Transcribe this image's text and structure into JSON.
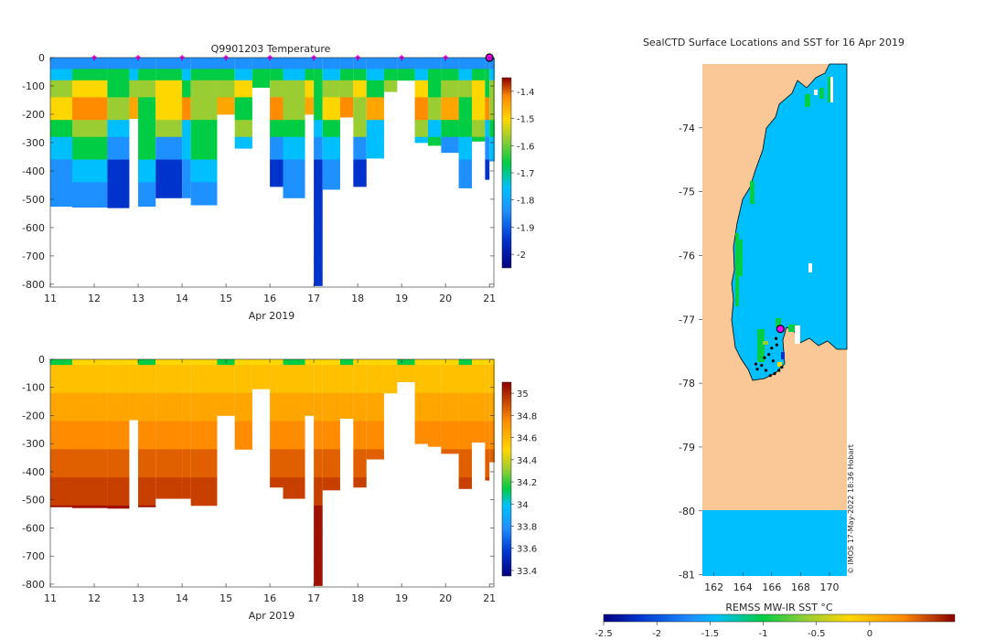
{
  "chart_data": [
    {
      "id": "temperature",
      "type": "heatmap",
      "title": "Q9901203  Temperature",
      "xlabel": "Apr 2019",
      "xlim": [
        11,
        21.1
      ],
      "ylim": [
        -810,
        0
      ],
      "xticks": [
        11,
        12,
        13,
        14,
        15,
        16,
        17,
        18,
        19,
        20,
        21
      ],
      "yticks": [
        0,
        -100,
        -200,
        -300,
        -400,
        -500,
        -600,
        -700,
        -800
      ],
      "colorbar": {
        "ticks": [
          -1.4,
          -1.5,
          -1.6,
          -1.7,
          -1.8,
          -1.9,
          -2
        ],
        "range": [
          -2.05,
          -1.35
        ]
      },
      "marker_days": [
        12,
        13,
        14,
        15,
        16,
        17,
        18,
        19,
        20,
        21
      ],
      "casts": [
        {
          "t": 11.0,
          "depth": 525
        },
        {
          "t": 11.5,
          "depth": 528
        },
        {
          "t": 12.3,
          "depth": 530
        },
        {
          "t": 12.8,
          "depth": 215
        },
        {
          "t": 13.0,
          "depth": 525
        },
        {
          "t": 13.4,
          "depth": 495
        },
        {
          "t": 14.0,
          "depth": 495
        },
        {
          "t": 14.2,
          "depth": 520
        },
        {
          "t": 14.8,
          "depth": 200
        },
        {
          "t": 15.2,
          "depth": 320
        },
        {
          "t": 15.6,
          "depth": 105
        },
        {
          "t": 16.0,
          "depth": 455
        },
        {
          "t": 16.3,
          "depth": 495
        },
        {
          "t": 16.8,
          "depth": 200
        },
        {
          "t": 17.0,
          "depth": 805
        },
        {
          "t": 17.2,
          "depth": 465
        },
        {
          "t": 17.6,
          "depth": 210
        },
        {
          "t": 17.9,
          "depth": 455
        },
        {
          "t": 18.2,
          "depth": 355
        },
        {
          "t": 18.6,
          "depth": 120
        },
        {
          "t": 18.9,
          "depth": 80
        },
        {
          "t": 19.3,
          "depth": 300
        },
        {
          "t": 19.6,
          "depth": 310
        },
        {
          "t": 19.9,
          "depth": 335
        },
        {
          "t": 20.3,
          "depth": 460
        },
        {
          "t": 20.6,
          "depth": 295
        },
        {
          "t": 20.9,
          "depth": 430
        },
        {
          "t": 21.0,
          "depth": 365
        }
      ]
    },
    {
      "id": "salinity",
      "type": "heatmap",
      "title": "",
      "xlabel": "Apr 2019",
      "xlim": [
        11,
        21.1
      ],
      "ylim": [
        -810,
        0
      ],
      "xticks": [
        11,
        12,
        13,
        14,
        15,
        16,
        17,
        18,
        19,
        20,
        21
      ],
      "yticks": [
        0,
        -100,
        -200,
        -300,
        -400,
        -500,
        -600,
        -700,
        -800
      ],
      "colorbar": {
        "ticks": [
          35,
          34.8,
          34.6,
          34.4,
          34.2,
          34,
          33.8,
          33.6,
          33.4
        ],
        "range": [
          33.35,
          35.1
        ]
      }
    },
    {
      "id": "sst-map",
      "type": "heatmap",
      "title": "SealCTD Surface Locations and SST for 16 Apr 2019",
      "xlabel": "",
      "xlim": [
        161.2,
        171.2
      ],
      "ylim": [
        -81.02,
        -73.0
      ],
      "xticks": [
        162,
        164,
        166,
        168,
        170
      ],
      "yticks": [
        -74,
        -75,
        -76,
        -77,
        -78,
        -79,
        -80,
        -81
      ],
      "colorbar": {
        "label": "REMSS MW-IR SST °C",
        "ticks": [
          -2.5,
          -2,
          -1.5,
          -1,
          -0.5,
          0
        ],
        "range": [
          -2.5,
          0.8
        ]
      },
      "current_position": {
        "lon": 166.6,
        "lat": -77.15
      },
      "track": [
        {
          "lon": 166.6,
          "lat": -77.15
        },
        {
          "lon": 166.3,
          "lat": -77.3
        },
        {
          "lon": 166.0,
          "lat": -77.45
        },
        {
          "lon": 165.8,
          "lat": -77.55
        },
        {
          "lon": 165.5,
          "lat": -77.6
        },
        {
          "lon": 165.3,
          "lat": -77.72
        },
        {
          "lon": 165.6,
          "lat": -77.8
        },
        {
          "lon": 165.9,
          "lat": -77.88
        },
        {
          "lon": 166.2,
          "lat": -77.85
        },
        {
          "lon": 166.5,
          "lat": -77.8
        },
        {
          "lon": 166.1,
          "lat": -77.65
        },
        {
          "lon": 166.35,
          "lat": -77.4
        },
        {
          "lon": 165.0,
          "lat": -77.78
        },
        {
          "lon": 164.9,
          "lat": -77.7
        },
        {
          "lon": 166.7,
          "lat": -77.75
        }
      ]
    }
  ],
  "credit": "© IMOS 17-May-2022 18:36 Hobart"
}
